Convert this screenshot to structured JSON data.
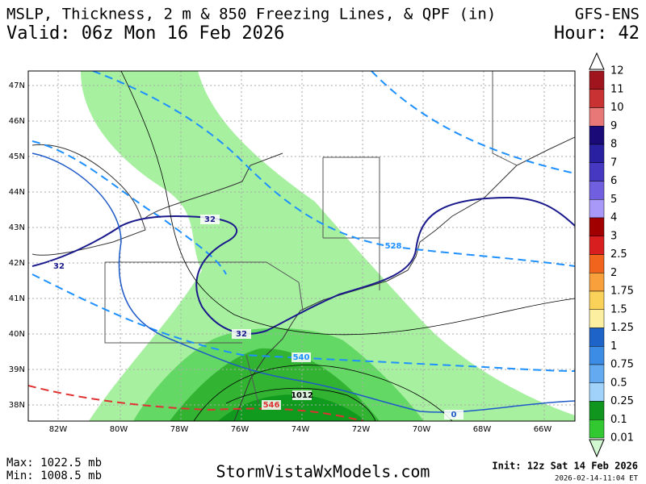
{
  "header": {
    "title": "MSLP, Thickness, 2 m & 850 Freezing Lines, & QPF (in)",
    "model": "GFS-ENS",
    "valid": "Valid: 06z Mon 16 Feb 2026",
    "hour": "Hour: 42"
  },
  "map": {
    "lat_labels": [
      "47N",
      "46N",
      "45N",
      "44N",
      "43N",
      "42N",
      "41N",
      "40N",
      "39N",
      "38N"
    ],
    "lon_labels": [
      "82W",
      "80W",
      "78W",
      "76W",
      "74W",
      "72W",
      "70W",
      "68W",
      "66W"
    ],
    "contour_labels": [
      "32",
      "32",
      "32",
      "528",
      "540",
      "1012",
      "0",
      "546"
    ]
  },
  "colorbar": {
    "labels": [
      "12",
      "11",
      "10",
      "9",
      "8",
      "7",
      "6",
      "5",
      "4",
      "3",
      "2.5",
      "2",
      "1.75",
      "1.5",
      "1.25",
      "1",
      "0.75",
      "0.5",
      "0.25",
      "0.1",
      "0.01"
    ],
    "colors": [
      "#a0141e",
      "#c83232",
      "#e87878",
      "#1a0a78",
      "#2820a0",
      "#4638c0",
      "#7060e0",
      "#a898f8",
      "#a00000",
      "#d81e1e",
      "#f0641e",
      "#f8a03c",
      "#fad25a",
      "#fcf0a0",
      "#1e64c8",
      "#3c8ce6",
      "#64aaf0",
      "#a0d2fa",
      "#10961e",
      "#32c832"
    ]
  },
  "footer": {
    "max": "Max: 1022.5 mb",
    "min": "Min: 1008.5 mb",
    "site": "StormVistaWxModels.com",
    "init": "Init: 12z Sat 14 Feb 2026",
    "timestamp": "2026-02-14-11:04 ET"
  }
}
